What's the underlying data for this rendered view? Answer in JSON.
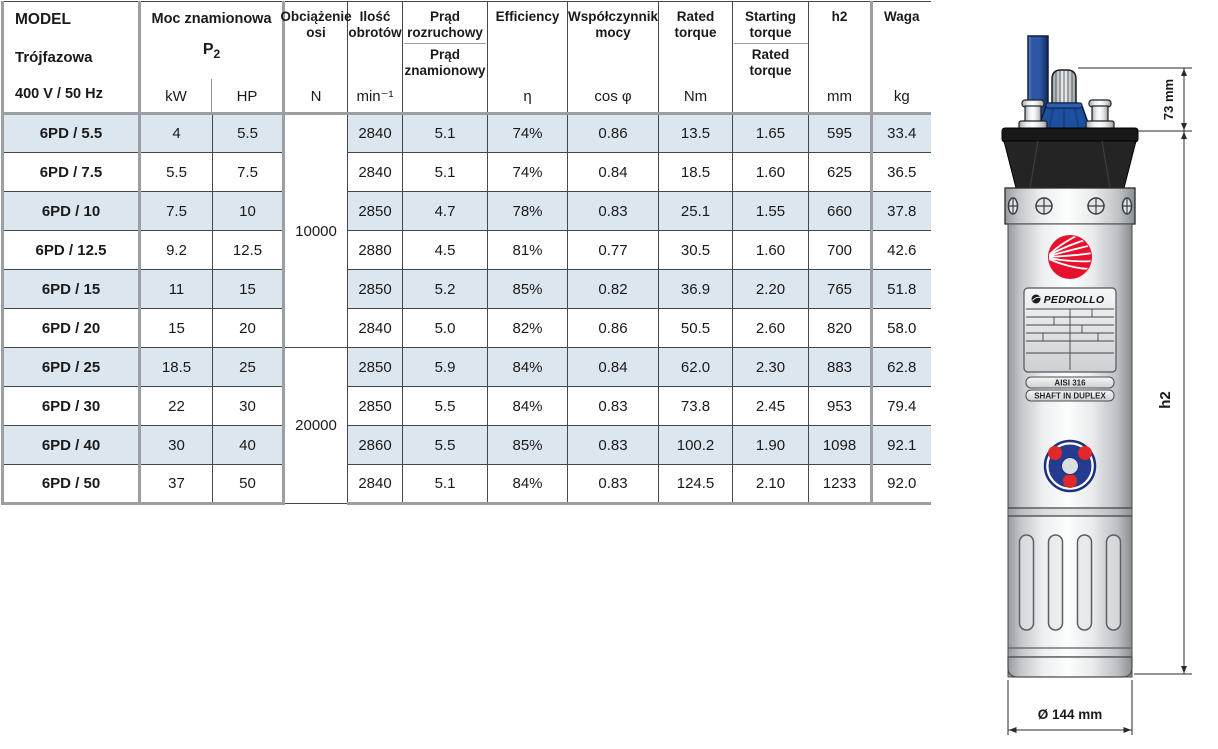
{
  "table": {
    "model_header": {
      "line1": "MODEL",
      "line2": "Trójfazowa",
      "line3": "400 V / 50 Hz"
    },
    "power_header": {
      "title": "Moc znamionowa",
      "symbol": "P",
      "symbol_sub": "2",
      "unit_kw": "kW",
      "unit_hp": "HP"
    },
    "columns": {
      "axle_load": {
        "title": "Obciążenie osi",
        "unit": "N"
      },
      "speed": {
        "title": "Ilość obrotów",
        "unit": "min⁻¹"
      },
      "current": {
        "top": "Prąd rozruchowy",
        "bottom": "Prąd znamionowy"
      },
      "efficiency": {
        "title": "Efficiency",
        "unit": "η"
      },
      "power_factor": {
        "title": "Współczynnik mocy",
        "unit": "cos φ"
      },
      "rated_torque": {
        "title": "Rated torque",
        "unit": "Nm"
      },
      "torque_ratio": {
        "top": "Starting torque",
        "bottom": "Rated torque"
      },
      "h2": {
        "title": "h2",
        "unit": "mm"
      },
      "weight": {
        "title": "Waga",
        "unit": "kg"
      }
    },
    "axle_loads": [
      {
        "value": "10000",
        "rows": 6
      },
      {
        "value": "20000",
        "rows": 4
      }
    ],
    "rows": [
      {
        "model": "6PD / 5.5",
        "kw": "4",
        "hp": "5.5",
        "rpm": "2840",
        "current": "5.1",
        "eff": "74%",
        "cosphi": "0.86",
        "torque": "13.5",
        "ratio": "1.65",
        "h2": "595",
        "weight": "33.4"
      },
      {
        "model": "6PD / 7.5",
        "kw": "5.5",
        "hp": "7.5",
        "rpm": "2840",
        "current": "5.1",
        "eff": "74%",
        "cosphi": "0.84",
        "torque": "18.5",
        "ratio": "1.60",
        "h2": "625",
        "weight": "36.5"
      },
      {
        "model": "6PD / 10",
        "kw": "7.5",
        "hp": "10",
        "rpm": "2850",
        "current": "4.7",
        "eff": "78%",
        "cosphi": "0.83",
        "torque": "25.1",
        "ratio": "1.55",
        "h2": "660",
        "weight": "37.8"
      },
      {
        "model": "6PD / 12.5",
        "kw": "9.2",
        "hp": "12.5",
        "rpm": "2880",
        "current": "4.5",
        "eff": "81%",
        "cosphi": "0.77",
        "torque": "30.5",
        "ratio": "1.60",
        "h2": "700",
        "weight": "42.6"
      },
      {
        "model": "6PD / 15",
        "kw": "11",
        "hp": "15",
        "rpm": "2850",
        "current": "5.2",
        "eff": "85%",
        "cosphi": "0.82",
        "torque": "36.9",
        "ratio": "2.20",
        "h2": "765",
        "weight": "51.8"
      },
      {
        "model": "6PD / 20",
        "kw": "15",
        "hp": "20",
        "rpm": "2840",
        "current": "5.0",
        "eff": "82%",
        "cosphi": "0.86",
        "torque": "50.5",
        "ratio": "2.60",
        "h2": "820",
        "weight": "58.0"
      },
      {
        "model": "6PD / 25",
        "kw": "18.5",
        "hp": "25",
        "rpm": "2850",
        "current": "5.9",
        "eff": "84%",
        "cosphi": "0.84",
        "torque": "62.0",
        "ratio": "2.30",
        "h2": "883",
        "weight": "62.8"
      },
      {
        "model": "6PD / 30",
        "kw": "22",
        "hp": "30",
        "rpm": "2850",
        "current": "5.5",
        "eff": "84%",
        "cosphi": "0.83",
        "torque": "73.8",
        "ratio": "2.45",
        "h2": "953",
        "weight": "79.4"
      },
      {
        "model": "6PD / 40",
        "kw": "30",
        "hp": "40",
        "rpm": "2860",
        "current": "5.5",
        "eff": "85%",
        "cosphi": "0.83",
        "torque": "100.2",
        "ratio": "1.90",
        "h2": "1098",
        "weight": "92.1"
      },
      {
        "model": "6PD / 50",
        "kw": "37",
        "hp": "50",
        "rpm": "2840",
        "current": "5.1",
        "eff": "84%",
        "cosphi": "0.83",
        "torque": "124.5",
        "ratio": "2.10",
        "h2": "1233",
        "weight": "92.0"
      }
    ]
  },
  "pump": {
    "brand": "PEDROLLO",
    "badge_material": "AISI 316",
    "badge_shaft": "SHAFT IN DUPLEX",
    "dim_top": "73 mm",
    "dim_height": "h2",
    "dim_diameter": "Ø 144 mm"
  },
  "colors": {
    "row_stripe": "#dce6ee",
    "border_thick": "#9b9ea3",
    "border_thin": "#43474c",
    "accent_red": "#e8112d",
    "cable_blue": "#2d57a6",
    "cone_blue": "#1d4f9f",
    "emblem_blue": "#243b8f"
  }
}
